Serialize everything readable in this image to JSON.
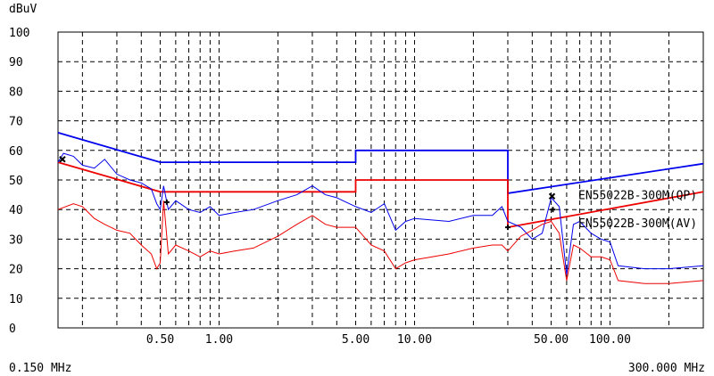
{
  "chart_data": {
    "type": "line",
    "title": "",
    "ylabel": "dBuV",
    "xlabel": "",
    "x_scale": "log",
    "xlim_mhz": [
      0.15,
      300
    ],
    "ylim": [
      0,
      100
    ],
    "x_range_labels": {
      "start": "0.150 MHz",
      "end": "300.000 MHz"
    },
    "y_ticks": [
      "0",
      "10",
      "20",
      "30",
      "40",
      "50",
      "60",
      "70",
      "80",
      "90",
      "100"
    ],
    "x_ticks": [
      {
        "value": 0.5,
        "label": "0.50"
      },
      {
        "value": 1,
        "label": "1.00"
      },
      {
        "value": 5,
        "label": "5.00"
      },
      {
        "value": 10,
        "label": "10.00"
      },
      {
        "value": 50,
        "label": "50.00"
      },
      {
        "value": 100,
        "label": "100.00"
      }
    ],
    "grid": true,
    "colors": {
      "qp": "#0000ee",
      "av": "#ee0000",
      "grid": "#000000"
    },
    "limits": [
      {
        "name": "EN55022B-300M(QP)",
        "color": "#0000ee",
        "points": [
          [
            0.15,
            66
          ],
          [
            0.5,
            56
          ],
          [
            5,
            56
          ],
          [
            5,
            60
          ],
          [
            30,
            60
          ],
          [
            30,
            45.5
          ],
          [
            300,
            55.5
          ]
        ]
      },
      {
        "name": "EN55022B-300M(AV)",
        "color": "#ee0000",
        "points": [
          [
            0.15,
            56
          ],
          [
            0.5,
            46
          ],
          [
            5,
            46
          ],
          [
            5,
            50
          ],
          [
            30,
            50
          ],
          [
            30,
            34
          ],
          [
            300,
            46
          ]
        ]
      }
    ],
    "series": [
      {
        "color": "#0000ee",
        "points": [
          [
            0.15,
            56
          ],
          [
            0.16,
            59
          ],
          [
            0.18,
            58
          ],
          [
            0.2,
            55
          ],
          [
            0.23,
            54
          ],
          [
            0.26,
            57
          ],
          [
            0.3,
            52
          ],
          [
            0.35,
            50
          ],
          [
            0.4,
            49
          ],
          [
            0.45,
            47
          ],
          [
            0.48,
            42
          ],
          [
            0.5,
            40
          ],
          [
            0.52,
            48
          ],
          [
            0.55,
            40
          ],
          [
            0.6,
            43
          ],
          [
            0.7,
            40
          ],
          [
            0.8,
            39
          ],
          [
            0.9,
            41
          ],
          [
            1.0,
            38
          ],
          [
            1.2,
            39
          ],
          [
            1.5,
            40
          ],
          [
            2.0,
            43
          ],
          [
            2.5,
            45
          ],
          [
            3.0,
            48
          ],
          [
            3.5,
            45
          ],
          [
            4.0,
            44
          ],
          [
            5.0,
            41
          ],
          [
            6.0,
            39
          ],
          [
            7.0,
            42
          ],
          [
            8.0,
            33
          ],
          [
            9.0,
            36
          ],
          [
            10.0,
            37
          ],
          [
            15.0,
            36
          ],
          [
            20.0,
            38
          ],
          [
            25.0,
            38
          ],
          [
            28.0,
            41
          ],
          [
            30.0,
            36
          ],
          [
            35.0,
            34
          ],
          [
            40.0,
            30
          ],
          [
            45.0,
            32
          ],
          [
            50.0,
            44
          ],
          [
            55.0,
            41
          ],
          [
            60.0,
            18
          ],
          [
            65.0,
            35
          ],
          [
            70.0,
            36
          ],
          [
            80.0,
            32
          ],
          [
            90.0,
            30
          ],
          [
            100.0,
            29
          ],
          [
            110.0,
            21
          ],
          [
            150.0,
            20
          ],
          [
            200.0,
            20
          ],
          [
            300.0,
            21
          ]
        ]
      },
      {
        "color": "#ee0000",
        "points": [
          [
            0.15,
            40
          ],
          [
            0.18,
            42
          ],
          [
            0.2,
            41
          ],
          [
            0.23,
            37
          ],
          [
            0.26,
            35
          ],
          [
            0.3,
            33
          ],
          [
            0.35,
            32
          ],
          [
            0.4,
            28
          ],
          [
            0.45,
            25
          ],
          [
            0.48,
            20
          ],
          [
            0.5,
            22
          ],
          [
            0.52,
            43
          ],
          [
            0.55,
            25
          ],
          [
            0.6,
            28
          ],
          [
            0.7,
            26
          ],
          [
            0.8,
            24
          ],
          [
            0.9,
            26
          ],
          [
            1.0,
            25
          ],
          [
            1.2,
            26
          ],
          [
            1.5,
            27
          ],
          [
            2.0,
            31
          ],
          [
            2.5,
            35
          ],
          [
            3.0,
            38
          ],
          [
            3.5,
            35
          ],
          [
            4.0,
            34
          ],
          [
            5.0,
            34
          ],
          [
            6.0,
            28
          ],
          [
            7.0,
            26
          ],
          [
            8.0,
            20
          ],
          [
            9.0,
            22
          ],
          [
            10.0,
            23
          ],
          [
            15.0,
            25
          ],
          [
            20.0,
            27
          ],
          [
            25.0,
            28
          ],
          [
            28.0,
            28
          ],
          [
            30.0,
            26
          ],
          [
            35.0,
            31
          ],
          [
            40.0,
            33
          ],
          [
            45.0,
            35
          ],
          [
            50.0,
            36
          ],
          [
            55.0,
            32
          ],
          [
            60.0,
            16
          ],
          [
            65.0,
            28
          ],
          [
            70.0,
            27
          ],
          [
            80.0,
            24
          ],
          [
            90.0,
            24
          ],
          [
            100.0,
            23
          ],
          [
            110.0,
            16
          ],
          [
            150.0,
            15
          ],
          [
            200.0,
            15
          ],
          [
            300.0,
            16
          ]
        ]
      }
    ],
    "markers": [
      {
        "x": 0.158,
        "y": 57,
        "symbol": "x"
      },
      {
        "x": 0.54,
        "y": 42.5,
        "symbol": "+"
      },
      {
        "x": 30,
        "y": 34,
        "symbol": "+"
      },
      {
        "x": 50.5,
        "y": 44.5,
        "symbol": "x"
      },
      {
        "x": 51,
        "y": 40,
        "symbol": "+"
      }
    ]
  }
}
